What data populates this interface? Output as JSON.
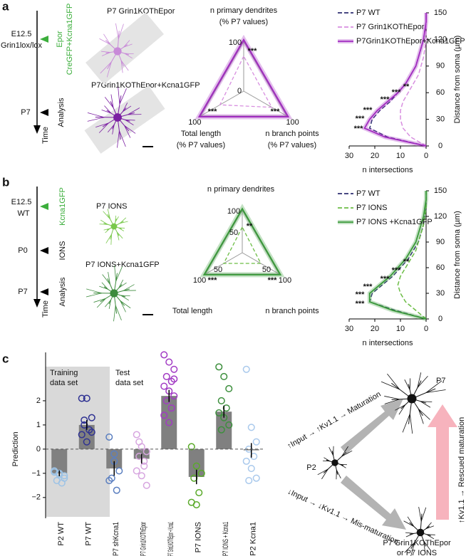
{
  "panel_a": {
    "label": "a",
    "timeline": {
      "start": "E12.5",
      "start_sub": "Grin1lox/lox",
      "treatment_1": "Epor",
      "treatment_2": "CreGFP+Kcna1GFP",
      "end": "P7",
      "end_event": "Analysis",
      "axis": "Time"
    },
    "images": [
      "P7 Grin1KOThEpor",
      "P7Grin1KOThEpor+Kcna1GFP"
    ]
  },
  "panel_b": {
    "label": "b",
    "timeline": {
      "start": "E12.5",
      "start_sub": "WT",
      "treatment": "Kcna1GFP",
      "mid": "P0",
      "mid_event": "IONS",
      "end": "P7",
      "end_event": "Analysis",
      "axis": "Time"
    },
    "images": [
      "P7 IONS",
      "P7 IONS+Kcna1GFP"
    ]
  },
  "panel_c": {
    "label": "c",
    "training": [
      "Training",
      "data set"
    ],
    "test": [
      "Test",
      "data set"
    ],
    "diagram": {
      "start": "P2",
      "end": "P7",
      "up_path": "↑Input → ↑Kv1.1 → Maturation",
      "down_path": "↓Input → ↓Kv1.1 → Mis-maturation",
      "rescue_path": "↑Kv1.1 → Rescued maturation",
      "outcome": [
        "P7 Grin1KOThEpor",
        "or P7 IONS"
      ]
    }
  },
  "chart_data": [
    {
      "type": "radar",
      "axes": [
        "n primary dendrites",
        "Total length",
        "n branch points"
      ],
      "axis_units": [
        "(% P7 values)",
        "(% P7 values)",
        "(% P7 values)"
      ],
      "rlim": [
        0,
        100
      ],
      "rticks": [
        0,
        100
      ],
      "annotations": [
        "***",
        "***",
        "***"
      ],
      "series": [
        {
          "color": "#9a9a9a",
          "values": [
            100,
            100,
            100
          ]
        },
        {
          "color": "#d88fe0",
          "dashed": true,
          "values": [
            70,
            55,
            65
          ]
        },
        {
          "color": "#a12cc0",
          "glow": true,
          "values": [
            103,
            103,
            103
          ]
        }
      ]
    },
    {
      "type": "sholl",
      "x_label": "n intersections",
      "y_label": "Distance from soma (µm)",
      "xlim": [
        30,
        0
      ],
      "ylim": [
        0,
        150
      ],
      "xticks": [
        30,
        20,
        10,
        0
      ],
      "yticks": [
        0,
        30,
        60,
        90,
        120,
        150
      ],
      "y": [
        0,
        10,
        20,
        30,
        40,
        50,
        60,
        70,
        80,
        90,
        100,
        110,
        120,
        130,
        140,
        150
      ],
      "annotations": [
        "**",
        "***",
        "***",
        "***",
        "***",
        "***"
      ],
      "annotation_color": "#d88fe0",
      "series": [
        {
          "name": "P7 WT",
          "color": "#2e2f72",
          "dashed": true,
          "values": [
            0,
            15,
            22,
            21,
            18,
            14,
            11,
            8,
            6,
            4,
            3,
            2,
            1,
            0.5,
            0,
            0
          ]
        },
        {
          "name": "P7 Grin1KOThEpor",
          "color": "#d88fe0",
          "dashed": true,
          "values": [
            0,
            6,
            9,
            10,
            10,
            9,
            7,
            5,
            3,
            2,
            1,
            0.5,
            0,
            0,
            0,
            0
          ]
        },
        {
          "name": "P7Grin1KOThEpor+Kcna1GFP",
          "color": "#a12cc0",
          "glow": true,
          "values": [
            0,
            16,
            24,
            22,
            19,
            15,
            11,
            8,
            6,
            4,
            3,
            2,
            1,
            0.5,
            0,
            0
          ]
        }
      ]
    },
    {
      "type": "radar",
      "axes": [
        "n primary dendrites",
        "Total length",
        "n branch points"
      ],
      "rlim": [
        0,
        100
      ],
      "rticks": [
        50,
        100
      ],
      "annotations": [
        "**",
        "***",
        "***"
      ],
      "series": [
        {
          "color": "#9a9a9a",
          "values": [
            100,
            100,
            100
          ]
        },
        {
          "color": "#6cbd45",
          "dashed": true,
          "values": [
            60,
            50,
            50
          ]
        },
        {
          "color": "#3b9a3b",
          "glow": true,
          "values": [
            103,
            103,
            103
          ]
        }
      ]
    },
    {
      "type": "sholl",
      "x_label": "n intersections",
      "y_label": "Distance from soma (µm)",
      "xlim": [
        30,
        0
      ],
      "ylim": [
        0,
        150
      ],
      "xticks": [
        30,
        20,
        10,
        0
      ],
      "yticks": [
        0,
        30,
        60,
        90,
        120,
        150
      ],
      "y": [
        0,
        10,
        20,
        30,
        40,
        50,
        60,
        70,
        80,
        90,
        100,
        110,
        120,
        130,
        140,
        150
      ],
      "annotations": [
        "**",
        "***",
        "***",
        "***",
        "***",
        "***"
      ],
      "annotation_color": "#4fb33a",
      "series": [
        {
          "name": "P7 WT",
          "color": "#2e2f72",
          "dashed": true,
          "values": [
            0,
            12,
            22,
            21,
            17,
            13,
            10,
            7,
            5,
            3,
            2,
            1,
            0.5,
            0,
            0,
            0
          ]
        },
        {
          "name": "P7 IONS",
          "color": "#6cbd45",
          "dashed": true,
          "values": [
            0,
            4,
            8,
            10,
            11,
            10,
            8,
            6,
            4,
            3,
            2,
            1,
            0.5,
            0,
            0,
            0
          ]
        },
        {
          "name": "P7 IONS +Kcna1GFP",
          "color": "#3b9a3b",
          "glow": true,
          "values": [
            0,
            13,
            22,
            22,
            18,
            14,
            11,
            8,
            6,
            4,
            3,
            2,
            1,
            0.5,
            0,
            0
          ]
        }
      ]
    },
    {
      "type": "bar",
      "y_label": "Prediction",
      "categories": [
        "P2 WT",
        "P7 WT",
        "P7 shKcna1",
        "P7 Grin1KOThEpor",
        "P7 Grin1KOThEpor + Kcna1",
        "P7 IONS",
        "P7 IONS + Kcna1",
        "P2 Kcna1"
      ],
      "values": [
        -1.0,
        1.0,
        -0.8,
        -0.4,
        2.2,
        -1.15,
        1.55,
        -0.05
      ],
      "errors": [
        0.12,
        0.2,
        0.3,
        0.2,
        0.25,
        0.3,
        0.25,
        0.3
      ],
      "color": "#808080",
      "zero_line": true,
      "point_colors": [
        "#9dc3e6",
        "#2e3192",
        "#5b7fc0",
        "#d7a6e0",
        "#a23bc4",
        "#5aaa2a",
        "#3d8f3d",
        "#a9c9ec"
      ],
      "points": [
        [
          -0.9,
          -1.0,
          -1.1,
          -1.3,
          -1.4,
          -0.95,
          -1.05,
          -1.2
        ],
        [
          2.1,
          2.1,
          1.3,
          1.0,
          0.8,
          0.6,
          0.3,
          0.7,
          1.2
        ],
        [
          0.5,
          -0.5,
          -0.9,
          -1.2,
          -1.7,
          -1.3,
          -0.2
        ],
        [
          0.6,
          0.1,
          -0.1,
          -0.3,
          -0.5,
          -0.9,
          -1.1,
          -1.5,
          0.3,
          -0.7
        ],
        [
          3.9,
          3.6,
          3.3,
          3.0,
          2.8,
          2.6,
          2.4,
          2.2,
          2.0,
          1.7,
          1.4,
          1.1,
          2.9
        ],
        [
          0.1,
          -0.7,
          -1.0,
          -1.2,
          -1.8,
          -2.2,
          -2.3
        ],
        [
          3.4,
          3.0,
          2.5,
          2.0,
          1.7,
          1.5,
          1.3,
          1.0,
          0.8
        ],
        [
          3.3,
          0.9,
          0.3,
          0,
          -0.3,
          -0.5,
          -0.8,
          -1.2,
          -1.3
        ]
      ],
      "ylim": [
        -2.8,
        4.0
      ],
      "yticks": [
        {
          "value": -2,
          "label": "−2"
        },
        {
          "value": -1,
          "label": "−1"
        },
        0,
        1,
        2
      ]
    }
  ]
}
